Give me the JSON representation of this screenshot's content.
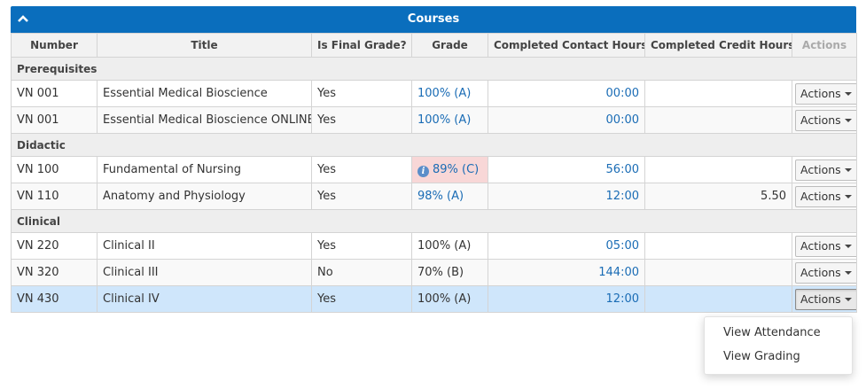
{
  "panel": {
    "title": "Courses"
  },
  "columns": [
    "Number",
    "Title",
    "Is Final Grade?",
    "Grade",
    "Completed Contact Hours",
    "Completed Credit Hours",
    "Actions"
  ],
  "groups": [
    {
      "name": "Prerequisites",
      "rows": [
        {
          "number": "VN 001",
          "title": "Essential Medical Bioscience",
          "final": "Yes",
          "grade": "100% (A)",
          "contact": "00:00",
          "credit": "",
          "actions": "Actions"
        },
        {
          "number": "VN 001",
          "title": "Essential Medical Bioscience ONLINE",
          "final": "Yes",
          "grade": "100% (A)",
          "contact": "00:00",
          "credit": "",
          "actions": "Actions"
        }
      ]
    },
    {
      "name": "Didactic",
      "rows": [
        {
          "number": "VN 100",
          "title": "Fundamental of Nursing",
          "final": "Yes",
          "grade": "89% (C)",
          "contact": "56:00",
          "credit": "",
          "actions": "Actions"
        },
        {
          "number": "VN 110",
          "title": "Anatomy and Physiology",
          "final": "Yes",
          "grade": "98% (A)",
          "contact": "12:00",
          "credit": "5.50",
          "actions": "Actions"
        }
      ]
    },
    {
      "name": "Clinical",
      "rows": [
        {
          "number": "VN 220",
          "title": "Clinical II",
          "final": "Yes",
          "grade": "100% (A)",
          "contact": "05:00",
          "credit": "",
          "actions": "Actions"
        },
        {
          "number": "VN 320",
          "title": "Clinical III",
          "final": "No",
          "grade": "70% (B)",
          "contact": "144:00",
          "credit": "",
          "actions": "Actions"
        },
        {
          "number": "VN 430",
          "title": "Clinical IV",
          "final": "Yes",
          "grade": "100% (A)",
          "contact": "12:00",
          "credit": "",
          "actions": "Actions"
        }
      ]
    }
  ],
  "dropdown": {
    "items": [
      "View Attendance",
      "View Grading"
    ]
  },
  "icons": {
    "collapse": "chevron-up-icon",
    "info": "info-icon",
    "caret": "caret-down-icon"
  },
  "colors": {
    "header": "#0a6ebd",
    "link": "#1a6cb5",
    "warning_cell": "#f8d7d7",
    "selected_row": "#cfe6fb"
  }
}
